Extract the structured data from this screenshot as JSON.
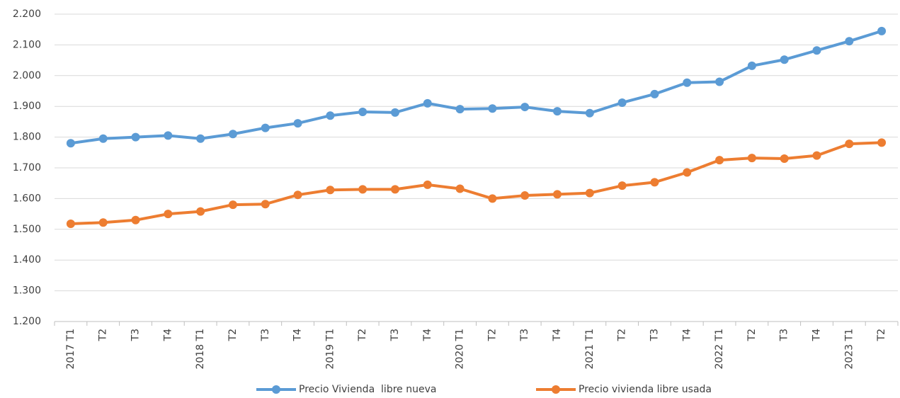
{
  "chart_data": {
    "type": "line",
    "categories": [
      "2017 T1",
      "T2",
      "T3",
      "T4",
      "2018 T1",
      "T2",
      "T3",
      "T4",
      "2019 T1",
      "T2",
      "T3",
      "T4",
      "2020 T1",
      "T2",
      "T3",
      "T4",
      "2021 T1",
      "T2",
      "T3",
      "T4",
      "2022 T1",
      "T2",
      "T3",
      "T4",
      "2023 T1",
      "T2"
    ],
    "series": [
      {
        "name": "Precio Vivienda  libre nueva",
        "color": "#5b9bd5",
        "values": [
          1780,
          1795,
          1800,
          1805,
          1795,
          1810,
          1830,
          1845,
          1870,
          1882,
          1880,
          1910,
          1891,
          1893,
          1898,
          1884,
          1878,
          1912,
          1940,
          1977,
          1980,
          2032,
          2052,
          2082,
          2112,
          2145
        ]
      },
      {
        "name": "Precio vivienda libre usada",
        "color": "#ed7d31",
        "values": [
          1518,
          1522,
          1530,
          1550,
          1558,
          1580,
          1582,
          1612,
          1628,
          1630,
          1630,
          1645,
          1632,
          1600,
          1610,
          1614,
          1618,
          1642,
          1653,
          1685,
          1725,
          1732,
          1730,
          1740,
          1778,
          1782
        ]
      }
    ],
    "ylim": [
      1200,
      2200
    ],
    "yticks": [
      {
        "value": 1200,
        "label": "1.200"
      },
      {
        "value": 1300,
        "label": "1.300"
      },
      {
        "value": 1400,
        "label": "1.400"
      },
      {
        "value": 1500,
        "label": "1.500"
      },
      {
        "value": 1600,
        "label": "1.600"
      },
      {
        "value": 1700,
        "label": "1.700"
      },
      {
        "value": 1800,
        "label": "1.800"
      },
      {
        "value": 1900,
        "label": "1.900"
      },
      {
        "value": 2000,
        "label": "2.000"
      },
      {
        "value": 2100,
        "label": "2.100"
      },
      {
        "value": 2200,
        "label": "2.200"
      }
    ],
    "grid": true,
    "legend": "bottom"
  }
}
